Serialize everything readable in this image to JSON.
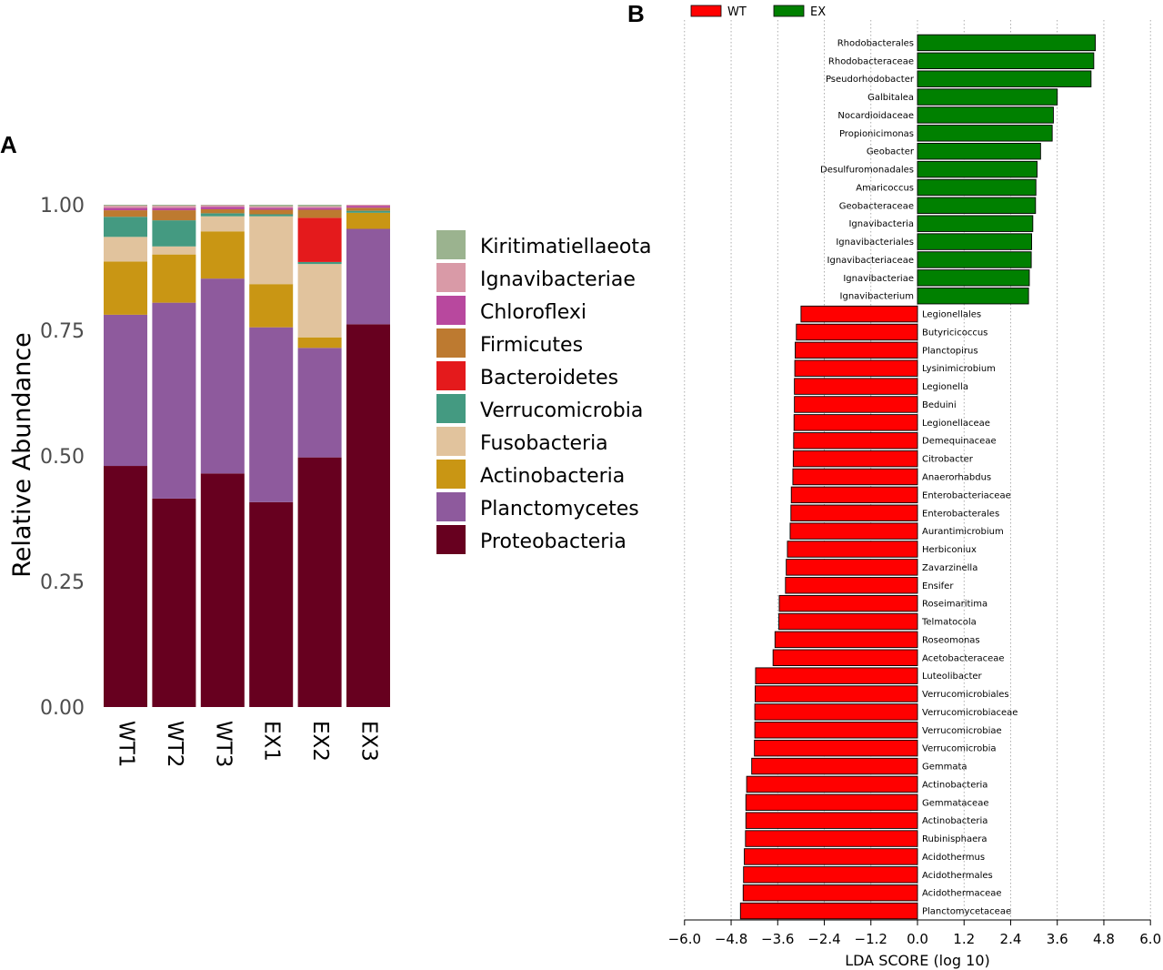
{
  "panel_a": {
    "letter": "A",
    "chart_data": {
      "type": "bar",
      "stacked": true,
      "ylabel": "Relative Abundance",
      "xlabel": "",
      "ylim": [
        0,
        1
      ],
      "yticks": [
        "0.00",
        "0.25",
        "0.50",
        "0.75",
        "1.00"
      ],
      "categories": [
        "WT1",
        "WT2",
        "WT3",
        "EX1",
        "EX2",
        "EX3"
      ],
      "series": [
        {
          "name": "Proteobacteria",
          "color": "#67001f",
          "values": [
            0.48,
            0.415,
            0.465,
            0.408,
            0.497,
            0.762
          ]
        },
        {
          "name": "Planctomycetes",
          "color": "#8e5a9d",
          "values": [
            0.301,
            0.39,
            0.388,
            0.348,
            0.218,
            0.19
          ]
        },
        {
          "name": "Actinobacteria",
          "color": "#c99614",
          "values": [
            0.106,
            0.096,
            0.094,
            0.086,
            0.021,
            0.032
          ]
        },
        {
          "name": "Fusobacteria",
          "color": "#e1c39d",
          "values": [
            0.049,
            0.016,
            0.03,
            0.135,
            0.146,
            0.0
          ]
        },
        {
          "name": "Verrucomicrobia",
          "color": "#449a81",
          "values": [
            0.04,
            0.052,
            0.006,
            0.004,
            0.004,
            0.004
          ]
        },
        {
          "name": "Bacteroidetes",
          "color": "#e41a1c",
          "values": [
            0.0,
            0.0,
            0.0,
            0.0,
            0.088,
            0.0
          ]
        },
        {
          "name": "Firmicutes",
          "color": "#bd7a30",
          "values": [
            0.013,
            0.02,
            0.008,
            0.009,
            0.016,
            0.006
          ]
        },
        {
          "name": "Chloroflexi",
          "color": "#b8489e",
          "values": [
            0.005,
            0.005,
            0.005,
            0.004,
            0.004,
            0.004
          ]
        },
        {
          "name": "Ignavibacteriae",
          "color": "#d99aa7",
          "values": [
            0.004,
            0.004,
            0.003,
            0.003,
            0.003,
            0.002
          ]
        },
        {
          "name": "Kiritimatiellaeota",
          "color": "#9bb38f",
          "values": [
            0.002,
            0.002,
            0.001,
            0.003,
            0.003,
            0.0
          ]
        }
      ],
      "legend_order": [
        "Kiritimatiellaeota",
        "Ignavibacteriae",
        "Chloroflexi",
        "Firmicutes",
        "Bacteroidetes",
        "Verrucomicrobia",
        "Fusobacteria",
        "Actinobacteria",
        "Planctomycetes",
        "Proteobacteria"
      ],
      "legend_position": "right"
    }
  },
  "panel_b": {
    "letter": "B",
    "chart_data": {
      "type": "bar",
      "orientation": "horizontal",
      "xlabel": "LDA SCORE (log 10)",
      "xlim": [
        -6.0,
        6.0
      ],
      "xticks": [
        "-6.0",
        "-4.8",
        "-3.6",
        "-2.4",
        "-1.2",
        "0.0",
        "1.2",
        "2.4",
        "3.6",
        "4.8",
        "6.0"
      ],
      "grid": true,
      "legend_position": "top-left",
      "groups": [
        {
          "name": "WT",
          "color": "#ff0000"
        },
        {
          "name": "EX",
          "color": "#008000"
        }
      ],
      "features": [
        {
          "name": "Rhodobacterales",
          "group": "EX",
          "value": 4.58
        },
        {
          "name": "Rhodobacteraceae",
          "group": "EX",
          "value": 4.54
        },
        {
          "name": "Pseudorhodobacter",
          "group": "EX",
          "value": 4.47
        },
        {
          "name": "Galbitalea",
          "group": "EX",
          "value": 3.6
        },
        {
          "name": "Nocardioidaceae",
          "group": "EX",
          "value": 3.5
        },
        {
          "name": "Propionicimonas",
          "group": "EX",
          "value": 3.47
        },
        {
          "name": "Geobacter",
          "group": "EX",
          "value": 3.17
        },
        {
          "name": "Desulfuromonadales",
          "group": "EX",
          "value": 3.08
        },
        {
          "name": "Amaricoccus",
          "group": "EX",
          "value": 3.05
        },
        {
          "name": "Geobacteraceae",
          "group": "EX",
          "value": 3.04
        },
        {
          "name": "Ignavibacteria",
          "group": "EX",
          "value": 2.97
        },
        {
          "name": "Ignavibacteriales",
          "group": "EX",
          "value": 2.94
        },
        {
          "name": "Ignavibacteriaceae",
          "group": "EX",
          "value": 2.93
        },
        {
          "name": "Ignavibacteriae",
          "group": "EX",
          "value": 2.88
        },
        {
          "name": "Ignavibacterium",
          "group": "EX",
          "value": 2.86
        },
        {
          "name": "Legionellales",
          "group": "WT",
          "value": -3.0
        },
        {
          "name": "Butyricicoccus",
          "group": "WT",
          "value": -3.12
        },
        {
          "name": "Planctopirus",
          "group": "WT",
          "value": -3.15
        },
        {
          "name": "Lysinimicrobium",
          "group": "WT",
          "value": -3.16
        },
        {
          "name": "Legionella",
          "group": "WT",
          "value": -3.17
        },
        {
          "name": "Beduini",
          "group": "WT",
          "value": -3.17
        },
        {
          "name": "Legionellaceae",
          "group": "WT",
          "value": -3.18
        },
        {
          "name": "Demequinaceae",
          "group": "WT",
          "value": -3.19
        },
        {
          "name": "Citrobacter",
          "group": "WT",
          "value": -3.2
        },
        {
          "name": "Anaerorhabdus",
          "group": "WT",
          "value": -3.21
        },
        {
          "name": "Enterobacteriaceae",
          "group": "WT",
          "value": -3.25
        },
        {
          "name": "Enterobacterales",
          "group": "WT",
          "value": -3.26
        },
        {
          "name": "Aurantimicrobium",
          "group": "WT",
          "value": -3.28
        },
        {
          "name": "Herbiconiux",
          "group": "WT",
          "value": -3.35
        },
        {
          "name": "Zavarzinella",
          "group": "WT",
          "value": -3.38
        },
        {
          "name": "Ensifer",
          "group": "WT",
          "value": -3.4
        },
        {
          "name": "Roseimaritima",
          "group": "WT",
          "value": -3.56
        },
        {
          "name": "Telmatocola",
          "group": "WT",
          "value": -3.57
        },
        {
          "name": "Roseomonas",
          "group": "WT",
          "value": -3.67
        },
        {
          "name": "Acetobacteraceae",
          "group": "WT",
          "value": -3.72
        },
        {
          "name": "Luteolibacter",
          "group": "WT",
          "value": -4.17
        },
        {
          "name": "Verrucomicrobiales",
          "group": "WT",
          "value": -4.18
        },
        {
          "name": "Verrucomicrobiaceae",
          "group": "WT",
          "value": -4.19
        },
        {
          "name": "Verrucomicrobiae",
          "group": "WT",
          "value": -4.19
        },
        {
          "name": "Verrucomicrobia",
          "group": "WT",
          "value": -4.2
        },
        {
          "name": "Gemmata",
          "group": "WT",
          "value": -4.27
        },
        {
          "name": "Actinobacteria",
          "group": "WT",
          "value": -4.4
        },
        {
          "name": "Gemmataceae",
          "group": "WT",
          "value": -4.42
        },
        {
          "name": "Actinobacteria",
          "group": "WT",
          "value": -4.42
        },
        {
          "name": "Rubinisphaera",
          "group": "WT",
          "value": -4.43
        },
        {
          "name": "Acidothermus",
          "group": "WT",
          "value": -4.46
        },
        {
          "name": "Acidothermales",
          "group": "WT",
          "value": -4.48
        },
        {
          "name": "Acidothermaceae",
          "group": "WT",
          "value": -4.49
        },
        {
          "name": "Planctomycetaceae",
          "group": "WT",
          "value": -4.56
        }
      ]
    }
  }
}
